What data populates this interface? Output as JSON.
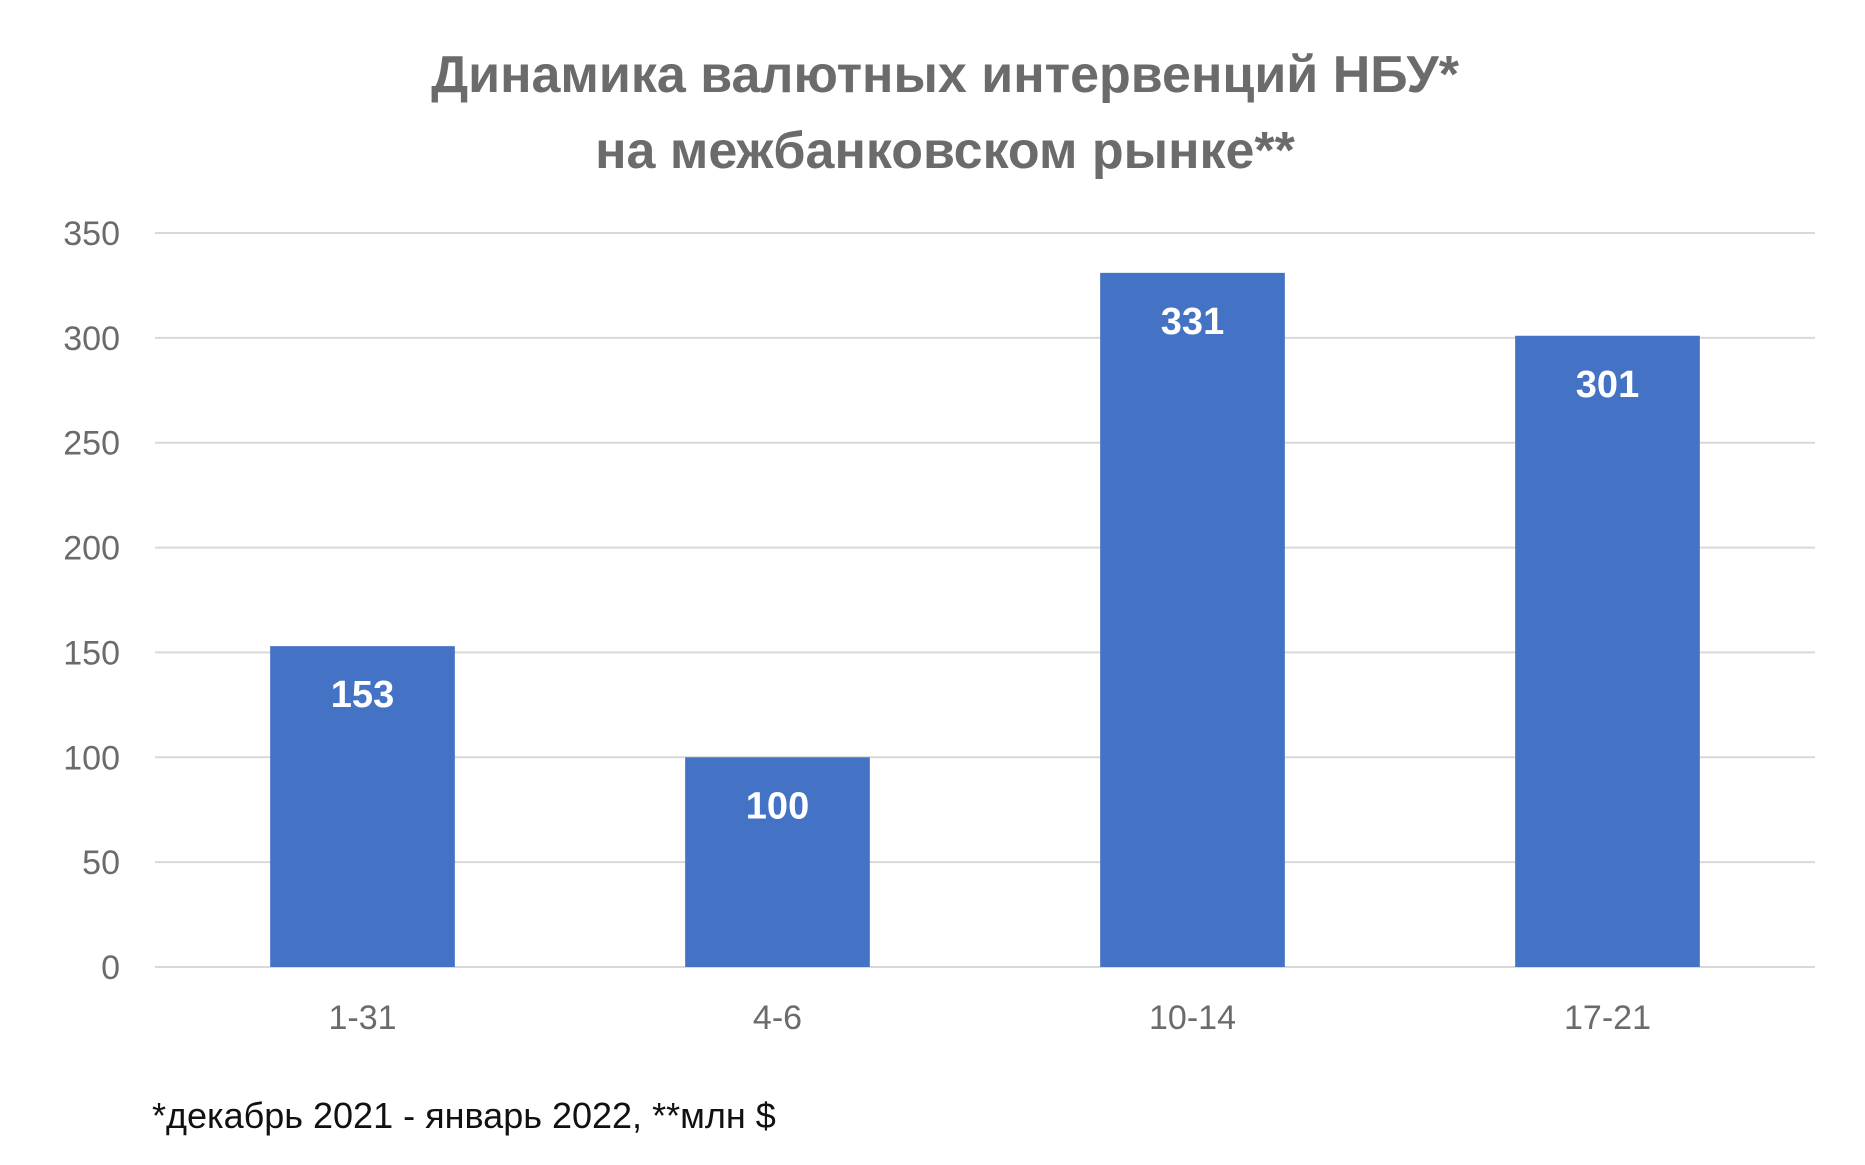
{
  "chart_data": {
    "type": "bar",
    "title_lines": [
      "Динамика валютных интервенций НБУ*",
      "на межбанковском рынке**"
    ],
    "categories": [
      "1-31",
      "4-6",
      "10-14",
      "17-21"
    ],
    "values": [
      153,
      100,
      331,
      301
    ],
    "data_labels": [
      "153",
      "100",
      "331",
      "301"
    ],
    "ylim": [
      0,
      350
    ],
    "yticks": [
      0,
      50,
      100,
      150,
      200,
      250,
      300,
      350
    ],
    "ytick_labels": [
      "0",
      "50",
      "100",
      "150",
      "200",
      "250",
      "300",
      "350"
    ],
    "grid": true,
    "legend": "none",
    "bar_color": "#4472c4",
    "footnote": "*декабрь 2021 - январь 2022,  **млн $"
  }
}
